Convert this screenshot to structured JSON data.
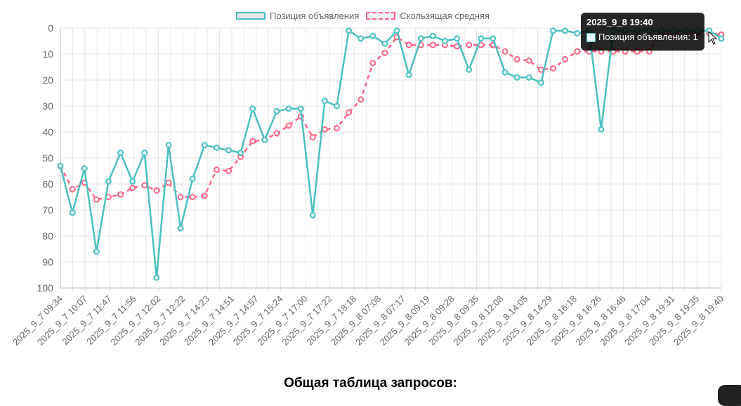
{
  "legend": {
    "series1": "Позиция объявления",
    "series2": "Скользящая средняя"
  },
  "tooltip": {
    "title": "2025_9_8 19:40",
    "body": "Позиция объявления: 1"
  },
  "section_heading": "Общая таблица запросов:",
  "colors": {
    "series1_line": "#4bc0c0",
    "series2_line": "#ff6384",
    "grid": "#e6e6e6",
    "tick_text": "#666666"
  },
  "chart_data": {
    "type": "line",
    "y_reversed": true,
    "ylim": [
      0,
      100
    ],
    "y_ticks": [
      0,
      10,
      20,
      30,
      40,
      50,
      60,
      70,
      80,
      90,
      100
    ],
    "grid": true,
    "legend_position": "top",
    "x_tick_labels": [
      "2025_9_7 09:34",
      "2025_9_7 10:07",
      "2025_9_7 11:47",
      "2025_9_7 11:56",
      "2025_9_7 12:02",
      "2025_9_7 12:22",
      "2025_9_7 14:23",
      "2025_9_7 14:51",
      "2025_9_7 14:57",
      "2025_9_7 15:24",
      "2025_9_7 17:00",
      "2025_9_7 17:22",
      "2025_9_7 18:18",
      "2025_9_8 07:08",
      "2025_9_8 07:17",
      "2025_9_8 09:19",
      "2025_9_8 09:28",
      "2025_9_8 09:35",
      "2025_9_8 12:08",
      "2025_9_8 14:05",
      "2025_9_8 14:29",
      "2025_9_8 16:18",
      "2025_9_8 16:26",
      "2025_9_8 16:46",
      "2025_9_8 17:04",
      "2025_9_8 19:31",
      "2025_9_8 19:35",
      "2025_9_8 19:40"
    ],
    "series": [
      {
        "name": "Позиция объявления",
        "values": [
          53,
          71,
          54,
          86,
          59,
          48,
          59,
          48,
          96,
          45,
          77,
          58,
          45,
          46,
          47,
          48,
          31,
          43,
          32,
          31,
          31,
          72,
          28,
          30,
          1,
          4,
          3,
          6,
          1,
          18,
          4,
          3,
          5,
          4,
          16,
          4,
          4,
          17,
          19,
          19,
          21,
          1,
          1,
          2,
          1,
          39,
          1,
          1,
          1,
          1,
          1,
          1,
          1,
          1,
          1,
          4
        ]
      },
      {
        "name": "Скользящая средняя",
        "values": [
          53,
          62,
          59.5,
          66,
          65,
          64,
          61.5,
          60.5,
          62.5,
          59.5,
          65,
          65,
          64.5,
          54.5,
          55,
          49.5,
          43.5,
          43,
          40.5,
          37.5,
          34,
          42,
          39,
          38.5,
          32.5,
          27.5,
          13.5,
          9.5,
          3.5,
          6.5,
          6.5,
          6.5,
          6.5,
          7,
          6.5,
          6.5,
          6.5,
          9,
          12,
          12.5,
          16,
          15.5,
          12,
          9,
          9,
          9,
          9,
          9,
          9,
          9,
          2,
          2,
          2,
          2,
          2,
          2.5
        ]
      }
    ]
  }
}
